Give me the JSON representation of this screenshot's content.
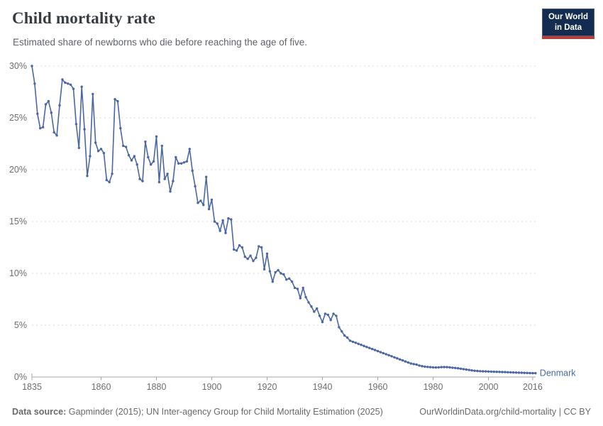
{
  "header": {
    "title": "Child mortality rate",
    "subtitle": "Estimated share of newborns who die before reaching the age of five.",
    "logo": {
      "line1": "Our World",
      "line2": "in Data"
    }
  },
  "footer": {
    "source_label": "Data source:",
    "source_text": "Gapminder (2015); UN Inter-agency Group for Child Mortality Estimation (2025)",
    "attribution": "OurWorldinData.org/child-mortality | CC BY"
  },
  "colors": {
    "series": "#4a67a3",
    "series_label": "#4a67a3",
    "grid": "#dadada",
    "axis": "#a6a6a6",
    "tick_text": "#6e6e6e",
    "logo_bg": "#132c50",
    "logo_red": "#c13b32"
  },
  "chart_data": {
    "type": "line",
    "title": "Child mortality rate",
    "subtitle": "Estimated share of newborns who die before reaching the age of five.",
    "xlabel": "",
    "ylabel": "",
    "ylim": [
      0,
      30
    ],
    "xlim": [
      1834,
      2018
    ],
    "grid": "horizontal-dashed",
    "legend_position": "end-of-line",
    "yticks": [
      {
        "value": 0,
        "label": "0%"
      },
      {
        "value": 5,
        "label": "5%"
      },
      {
        "value": 10,
        "label": "10%"
      },
      {
        "value": 15,
        "label": "15%"
      },
      {
        "value": 20,
        "label": "20%"
      },
      {
        "value": 25,
        "label": "25%"
      },
      {
        "value": 30,
        "label": "30%"
      }
    ],
    "xticks": [
      {
        "value": 1835,
        "label": "1835"
      },
      {
        "value": 1860,
        "label": "1860"
      },
      {
        "value": 1880,
        "label": "1880"
      },
      {
        "value": 1900,
        "label": "1900"
      },
      {
        "value": 1920,
        "label": "1920"
      },
      {
        "value": 1940,
        "label": "1940"
      },
      {
        "value": 1960,
        "label": "1960"
      },
      {
        "value": 1980,
        "label": "1980"
      },
      {
        "value": 2000,
        "label": "2000"
      },
      {
        "value": 2016,
        "label": "2016"
      }
    ],
    "x": [
      1835,
      1836,
      1837,
      1838,
      1839,
      1840,
      1841,
      1842,
      1843,
      1844,
      1845,
      1846,
      1847,
      1848,
      1849,
      1850,
      1851,
      1852,
      1853,
      1854,
      1855,
      1856,
      1857,
      1858,
      1859,
      1860,
      1861,
      1862,
      1863,
      1864,
      1865,
      1866,
      1867,
      1868,
      1869,
      1870,
      1871,
      1872,
      1873,
      1874,
      1875,
      1876,
      1877,
      1878,
      1879,
      1880,
      1881,
      1882,
      1883,
      1884,
      1885,
      1886,
      1887,
      1888,
      1889,
      1890,
      1891,
      1892,
      1893,
      1894,
      1895,
      1896,
      1897,
      1898,
      1899,
      1900,
      1901,
      1902,
      1903,
      1904,
      1905,
      1906,
      1907,
      1908,
      1909,
      1910,
      1911,
      1912,
      1913,
      1914,
      1915,
      1916,
      1917,
      1918,
      1919,
      1920,
      1921,
      1922,
      1923,
      1924,
      1925,
      1926,
      1927,
      1928,
      1929,
      1930,
      1931,
      1932,
      1933,
      1934,
      1935,
      1936,
      1937,
      1938,
      1939,
      1940,
      1941,
      1942,
      1943,
      1944,
      1945,
      1946,
      1947,
      1948,
      1949,
      1950,
      1951,
      1952,
      1953,
      1954,
      1955,
      1956,
      1957,
      1958,
      1959,
      1960,
      1961,
      1962,
      1963,
      1964,
      1965,
      1966,
      1967,
      1968,
      1969,
      1970,
      1971,
      1972,
      1973,
      1974,
      1975,
      1976,
      1977,
      1978,
      1979,
      1980,
      1981,
      1982,
      1983,
      1984,
      1985,
      1986,
      1987,
      1988,
      1989,
      1990,
      1991,
      1992,
      1993,
      1994,
      1995,
      1996,
      1997,
      1998,
      1999,
      2000,
      2001,
      2002,
      2003,
      2004,
      2005,
      2006,
      2007,
      2008,
      2009,
      2010,
      2011,
      2012,
      2013,
      2014,
      2015,
      2016,
      2017
    ],
    "series": [
      {
        "name": "Denmark",
        "unit": "%",
        "values": [
          30.0,
          28.3,
          25.4,
          24.0,
          24.1,
          26.3,
          26.6,
          25.5,
          23.6,
          23.3,
          26.2,
          28.7,
          28.4,
          28.3,
          28.2,
          27.8,
          24.4,
          22.1,
          28.0,
          23.9,
          19.4,
          21.3,
          27.3,
          22.6,
          21.8,
          22.0,
          21.6,
          19.0,
          18.8,
          19.6,
          26.8,
          26.6,
          24.0,
          22.3,
          22.2,
          21.4,
          20.9,
          21.3,
          20.5,
          19.1,
          18.9,
          22.7,
          21.2,
          20.5,
          20.8,
          23.2,
          18.8,
          22.3,
          19.1,
          19.6,
          17.9,
          18.9,
          21.2,
          20.6,
          20.6,
          20.7,
          20.8,
          22.0,
          19.9,
          18.4,
          16.8,
          17.0,
          16.6,
          19.3,
          16.2,
          17.1,
          15.0,
          14.8,
          14.1,
          15.1,
          13.9,
          15.3,
          15.2,
          12.3,
          12.2,
          12.7,
          12.5,
          11.6,
          11.4,
          11.7,
          11.2,
          11.5,
          12.6,
          12.5,
          10.4,
          11.9,
          10.2,
          9.2,
          10.1,
          10.3,
          10.0,
          9.9,
          9.4,
          9.5,
          9.2,
          8.6,
          8.5,
          7.6,
          8.6,
          7.7,
          7.2,
          6.8,
          6.3,
          6.6,
          5.9,
          5.3,
          6.1,
          6.0,
          5.5,
          6.1,
          5.9,
          4.8,
          4.4,
          4.0,
          3.8,
          3.5,
          3.4,
          3.3,
          3.2,
          3.1,
          3.0,
          2.9,
          2.8,
          2.7,
          2.6,
          2.5,
          2.4,
          2.3,
          2.2,
          2.1,
          2.0,
          1.9,
          1.8,
          1.7,
          1.6,
          1.5,
          1.4,
          1.3,
          1.25,
          1.2,
          1.1,
          1.05,
          1.0,
          0.97,
          0.95,
          0.93,
          0.92,
          0.93,
          0.95,
          0.96,
          0.95,
          0.93,
          0.9,
          0.87,
          0.84,
          0.8,
          0.76,
          0.72,
          0.68,
          0.64,
          0.6,
          0.58,
          0.56,
          0.55,
          0.54,
          0.53,
          0.52,
          0.51,
          0.5,
          0.49,
          0.48,
          0.47,
          0.46,
          0.45,
          0.44,
          0.43,
          0.42,
          0.41,
          0.4,
          0.39,
          0.38,
          0.37,
          0.37
        ]
      }
    ]
  }
}
